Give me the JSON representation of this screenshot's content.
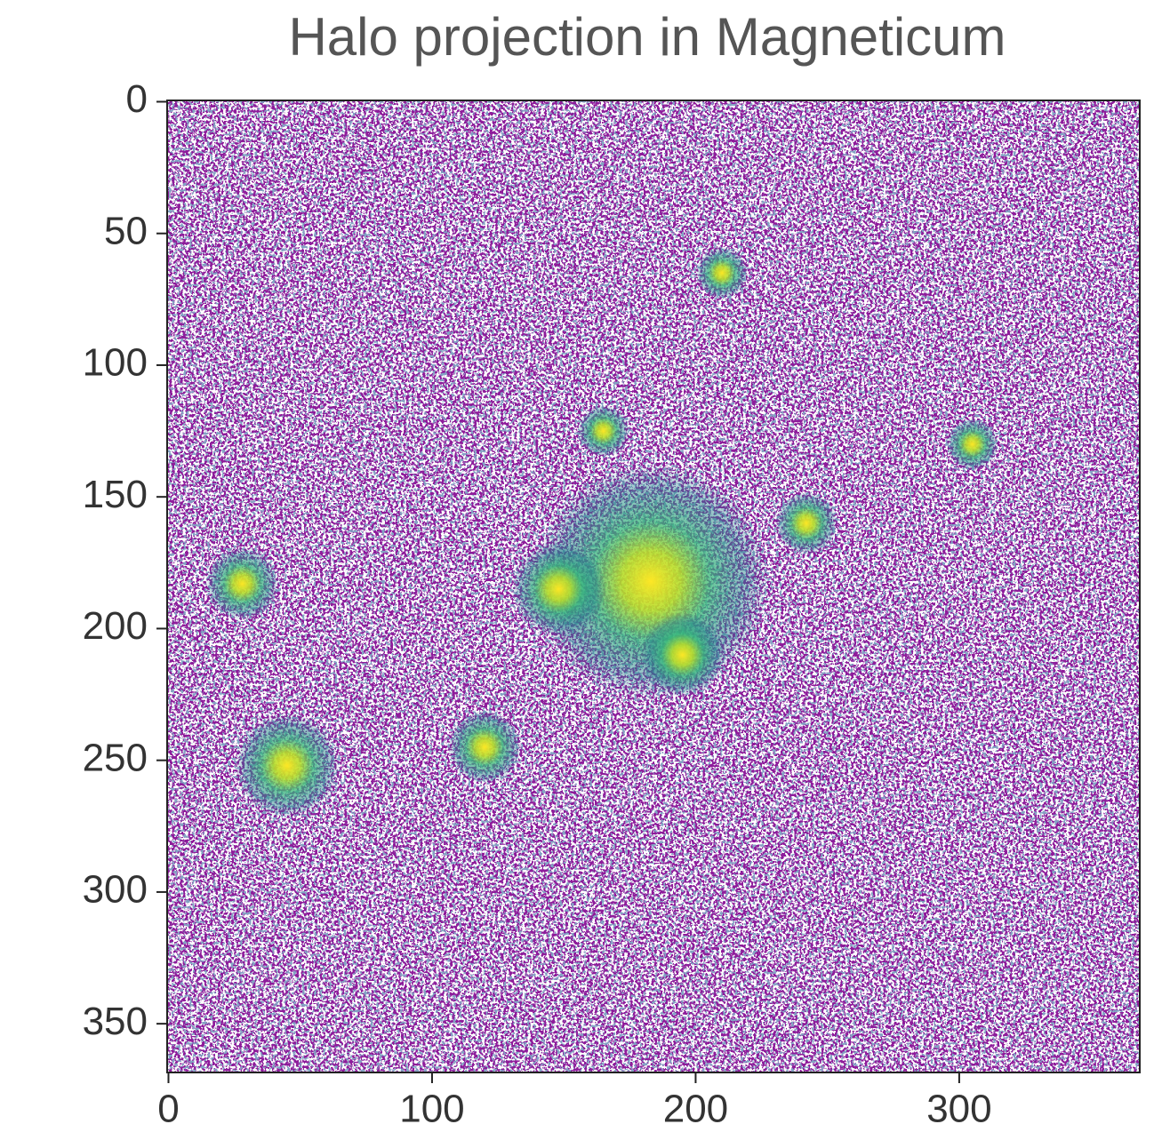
{
  "chart_data": {
    "type": "image",
    "title": "Halo projection in Magneticum",
    "xlim": [
      -0.5,
      368.5
    ],
    "ylim": [
      368.5,
      -0.5
    ],
    "xticks": [
      0,
      100,
      200,
      300
    ],
    "yticks": [
      0,
      50,
      100,
      150,
      200,
      250,
      300,
      350
    ],
    "halos": [
      {
        "x": 183,
        "y": 182,
        "r": 45
      },
      {
        "x": 148,
        "y": 185,
        "r": 18
      },
      {
        "x": 195,
        "y": 210,
        "r": 16
      },
      {
        "x": 242,
        "y": 160,
        "r": 12
      },
      {
        "x": 165,
        "y": 125,
        "r": 10
      },
      {
        "x": 45,
        "y": 252,
        "r": 20
      },
      {
        "x": 120,
        "y": 245,
        "r": 14
      },
      {
        "x": 28,
        "y": 183,
        "r": 14
      },
      {
        "x": 305,
        "y": 130,
        "r": 10
      },
      {
        "x": 210,
        "y": 65,
        "r": 10
      }
    ]
  }
}
